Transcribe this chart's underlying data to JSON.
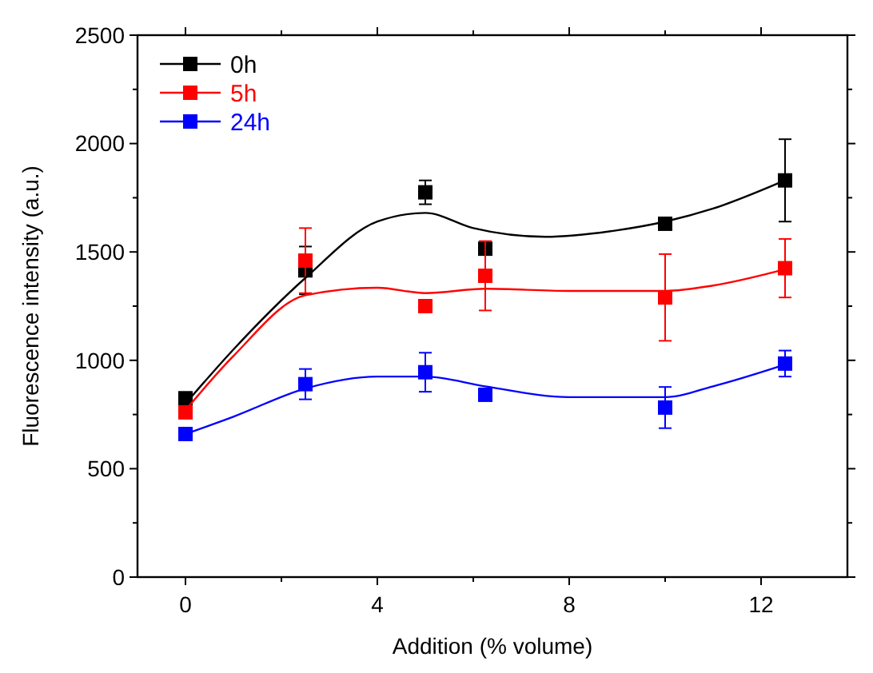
{
  "chart_data": {
    "type": "scatter",
    "xlabel": "Addition (% volume)",
    "ylabel": "Fluorescence intensity (a.u.)",
    "xlim": [
      -1,
      13.8
    ],
    "ylim": [
      0,
      2500
    ],
    "xticks": [
      0,
      {
        "value": 2,
        "label": null
      },
      4,
      {
        "value": 6,
        "label": null
      },
      8,
      {
        "value": 10,
        "label": null
      },
      12
    ],
    "yticks": [
      0,
      {
        "value": 250,
        "label": null
      },
      500,
      {
        "value": 750,
        "label": null
      },
      1000,
      {
        "value": 1250,
        "label": null
      },
      1500,
      {
        "value": 1750,
        "label": null
      },
      2000,
      {
        "value": 2250,
        "label": null
      },
      2500
    ],
    "marker": "square",
    "legend": "top left",
    "series": [
      {
        "name": "0h",
        "color": "#000000",
        "x": [
          0,
          2.5,
          5,
          6.25,
          10,
          12.5
        ],
        "values": [
          825,
          1415,
          1775,
          1515,
          1630,
          1830
        ],
        "errors": [
          null,
          110,
          55,
          null,
          null,
          190
        ]
      },
      {
        "name": "5h",
        "color": "#ff0000",
        "x": [
          0,
          2.5,
          5,
          6.25,
          10,
          12.5
        ],
        "values": [
          760,
          1460,
          1250,
          1390,
          1290,
          1425
        ],
        "errors": [
          null,
          150,
          null,
          160,
          200,
          135
        ]
      },
      {
        "name": "24h",
        "color": "#0000ff",
        "x": [
          0,
          2.5,
          5,
          6.25,
          10,
          12.5
        ],
        "values": [
          660,
          890,
          945,
          841,
          782,
          985
        ],
        "errors": [
          null,
          70,
          90,
          null,
          95,
          60
        ]
      },
      {
        "type": "line",
        "marker": "none",
        "color": "#000000",
        "x": [
          0,
          1,
          2.5,
          4,
          5,
          6,
          7.5,
          9,
          10,
          11,
          12.5
        ],
        "values": [
          800,
          1050,
          1380,
          1640,
          1680,
          1610,
          1570,
          1600,
          1640,
          1700,
          1830
        ]
      },
      {
        "type": "line",
        "marker": "none",
        "color": "#ff0000",
        "x": [
          0,
          1,
          2.5,
          4,
          5,
          6.25,
          8,
          10,
          11,
          12.5
        ],
        "values": [
          770,
          1020,
          1300,
          1335,
          1310,
          1330,
          1320,
          1320,
          1345,
          1420
        ]
      },
      {
        "type": "line",
        "marker": "none",
        "color": "#0000ff",
        "x": [
          0,
          1,
          2.5,
          4,
          5,
          6.25,
          8,
          10,
          11,
          12.5
        ],
        "values": [
          660,
          740,
          870,
          925,
          925,
          880,
          830,
          830,
          880,
          980
        ]
      }
    ]
  }
}
